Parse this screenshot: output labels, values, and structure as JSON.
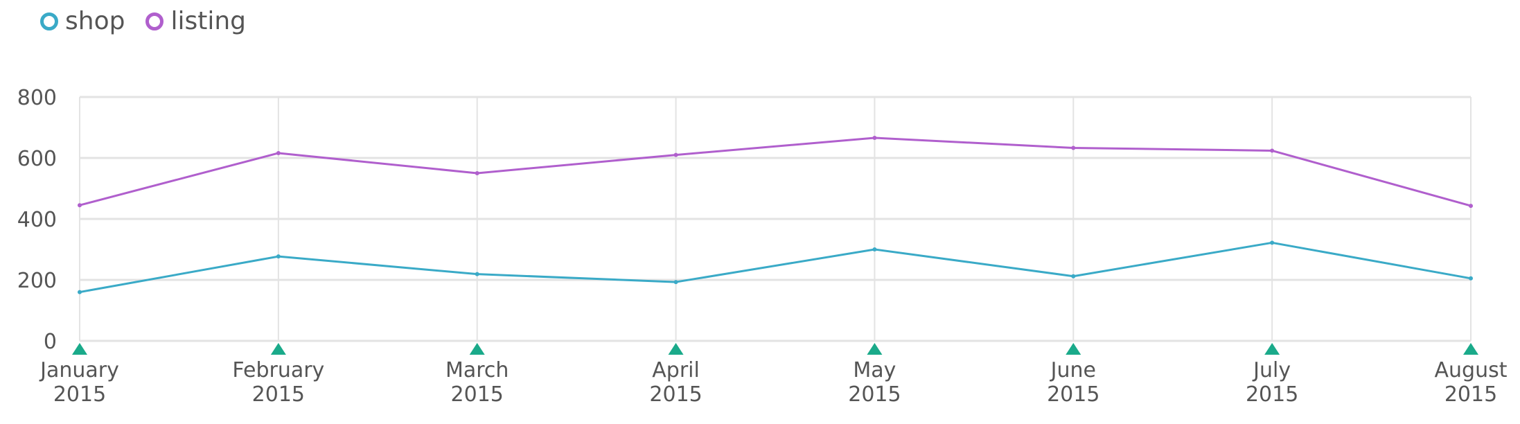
{
  "chart_data": {
    "type": "line",
    "categories": [
      "January 2015",
      "February 2015",
      "March 2015",
      "April 2015",
      "May 2015",
      "June 2015",
      "July 2015",
      "August 2015"
    ],
    "x_tick_labels": [
      [
        "January",
        "2015"
      ],
      [
        "February",
        "2015"
      ],
      [
        "March",
        "2015"
      ],
      [
        "April",
        "2015"
      ],
      [
        "May",
        "2015"
      ],
      [
        "June",
        "2015"
      ],
      [
        "July",
        "2015"
      ],
      [
        "August",
        "2015"
      ]
    ],
    "series": [
      {
        "name": "shop",
        "color": "#3aaac7",
        "values": [
          160,
          277,
          219,
          193,
          300,
          212,
          322,
          205
        ]
      },
      {
        "name": "listing",
        "color": "#b05fcd",
        "values": [
          445,
          616,
          550,
          610,
          666,
          633,
          624,
          443
        ]
      }
    ],
    "y_ticks": [
      0,
      200,
      400,
      600,
      800
    ],
    "ylim": [
      0,
      800
    ],
    "grid": true,
    "legend_position": "top-left",
    "marker_color": "#1aaa8a",
    "grid_color": "#e3e3e3"
  }
}
